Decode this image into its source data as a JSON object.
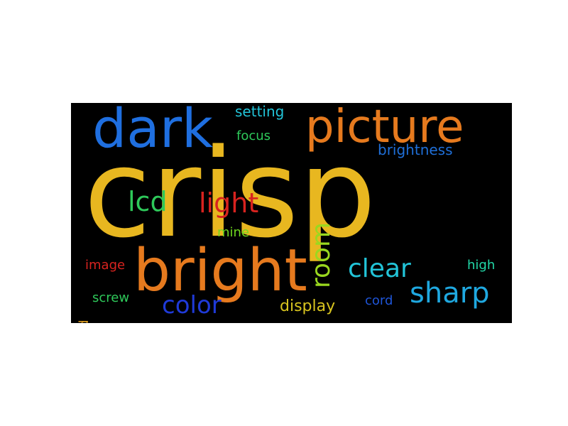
{
  "wordcloud": {
    "background": "#000000",
    "words": {
      "crisp": {
        "text": "crisp",
        "color": "#e8b720"
      },
      "dark": {
        "text": "dark",
        "color": "#1f6fe0"
      },
      "picture": {
        "text": "picture",
        "color": "#e67a1e"
      },
      "bright": {
        "text": "bright",
        "color": "#e67a1e"
      },
      "sharp": {
        "text": "sharp",
        "color": "#1fa8e0"
      },
      "clear": {
        "text": "clear",
        "color": "#22c4d8"
      },
      "light": {
        "text": "light",
        "color": "#d8231f"
      },
      "lcd": {
        "text": "lcd",
        "color": "#2ec95a"
      },
      "room": {
        "text": "room",
        "color": "#9ad81f"
      },
      "color": {
        "text": "color",
        "color": "#1f3ad8"
      },
      "display": {
        "text": "display",
        "color": "#d8c41f"
      },
      "brightness": {
        "text": "brightness",
        "color": "#1f6fd8"
      },
      "setting": {
        "text": "setting",
        "color": "#22c4d8"
      },
      "focus": {
        "text": "focus",
        "color": "#2ec95a"
      },
      "mine": {
        "text": "mine",
        "color": "#6fd81f"
      },
      "image": {
        "text": "image",
        "color": "#d8231f"
      },
      "high": {
        "text": "high",
        "color": "#22d8a8"
      },
      "cord": {
        "text": "cord",
        "color": "#1f55d8"
      },
      "screw": {
        "text": "screw",
        "color": "#2ec95a"
      },
      "sound": {
        "text": "sound",
        "color": "#d89a1f"
      }
    }
  }
}
